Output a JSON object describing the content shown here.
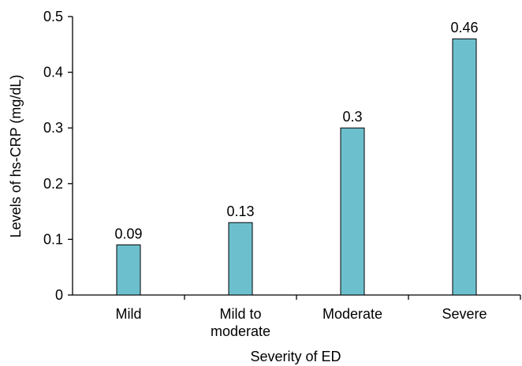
{
  "chart_data": {
    "type": "bar",
    "categories": [
      [
        "Mild"
      ],
      [
        "Mild to",
        "moderate"
      ],
      [
        "Moderate"
      ],
      [
        "Severe"
      ]
    ],
    "values": [
      0.09,
      0.13,
      0.3,
      0.46
    ],
    "data_labels": [
      "0.09",
      "0.13",
      "0.3",
      "0.46"
    ],
    "xlabel": "Severity of ED",
    "ylabel": "Levels of hs-CRP (mg/dL)",
    "ylim": [
      0,
      0.5
    ],
    "yticks": [
      0,
      0.1,
      0.2,
      0.3,
      0.4,
      0.5
    ],
    "ytick_labels": [
      "0",
      "0.1",
      "0.2",
      "0.3",
      "0.4",
      "0.5"
    ],
    "bar_color": "#6cc0ce",
    "grid": false,
    "legend": false
  }
}
